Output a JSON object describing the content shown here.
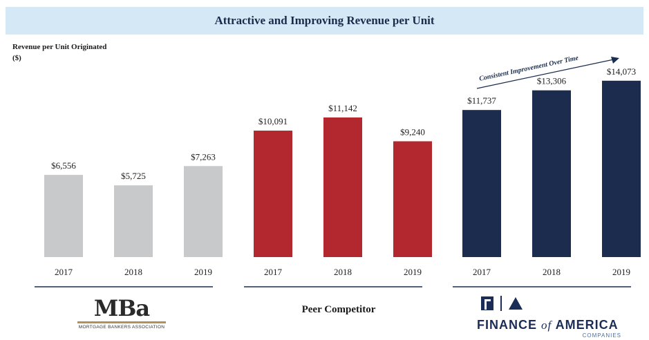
{
  "title": "Attractive and Improving Revenue per Unit",
  "chart_data": {
    "type": "bar",
    "ylabel_lines": [
      "Revenue per Unit Originated",
      "($)"
    ],
    "ylim": [
      0,
      15000
    ],
    "groups": [
      {
        "label": "MBa",
        "color": "#c8c9ca",
        "categories": [
          "2017",
          "2018",
          "2019"
        ],
        "values": [
          6556,
          5725,
          7263
        ],
        "value_labels": [
          "$6,556",
          "$5,725",
          "$7,263"
        ]
      },
      {
        "label": "Peer Competitor",
        "color": "#b2282e",
        "categories": [
          "2017",
          "2018",
          "2019"
        ],
        "values": [
          10091,
          11142,
          9240
        ],
        "value_labels": [
          "$10,091",
          "$11,142",
          "$9,240"
        ]
      },
      {
        "label": "FINANCE of AMERICA",
        "color": "#1b2c4e",
        "categories": [
          "2017",
          "2018",
          "2019"
        ],
        "values": [
          11737,
          13306,
          14073
        ],
        "value_labels": [
          "$11,737",
          "$13,306",
          "$14,073"
        ]
      }
    ],
    "annotation": "Consistent Improvement Over Time"
  },
  "logos": {
    "mba": {
      "word": "MBa",
      "sub": "MORTGAGE BANKERS ASSOCIATION"
    },
    "foa": {
      "name_part1": "FINANCE",
      "name_of": "of",
      "name_part2": "AMERICA",
      "sub": "COMPANIES"
    }
  }
}
